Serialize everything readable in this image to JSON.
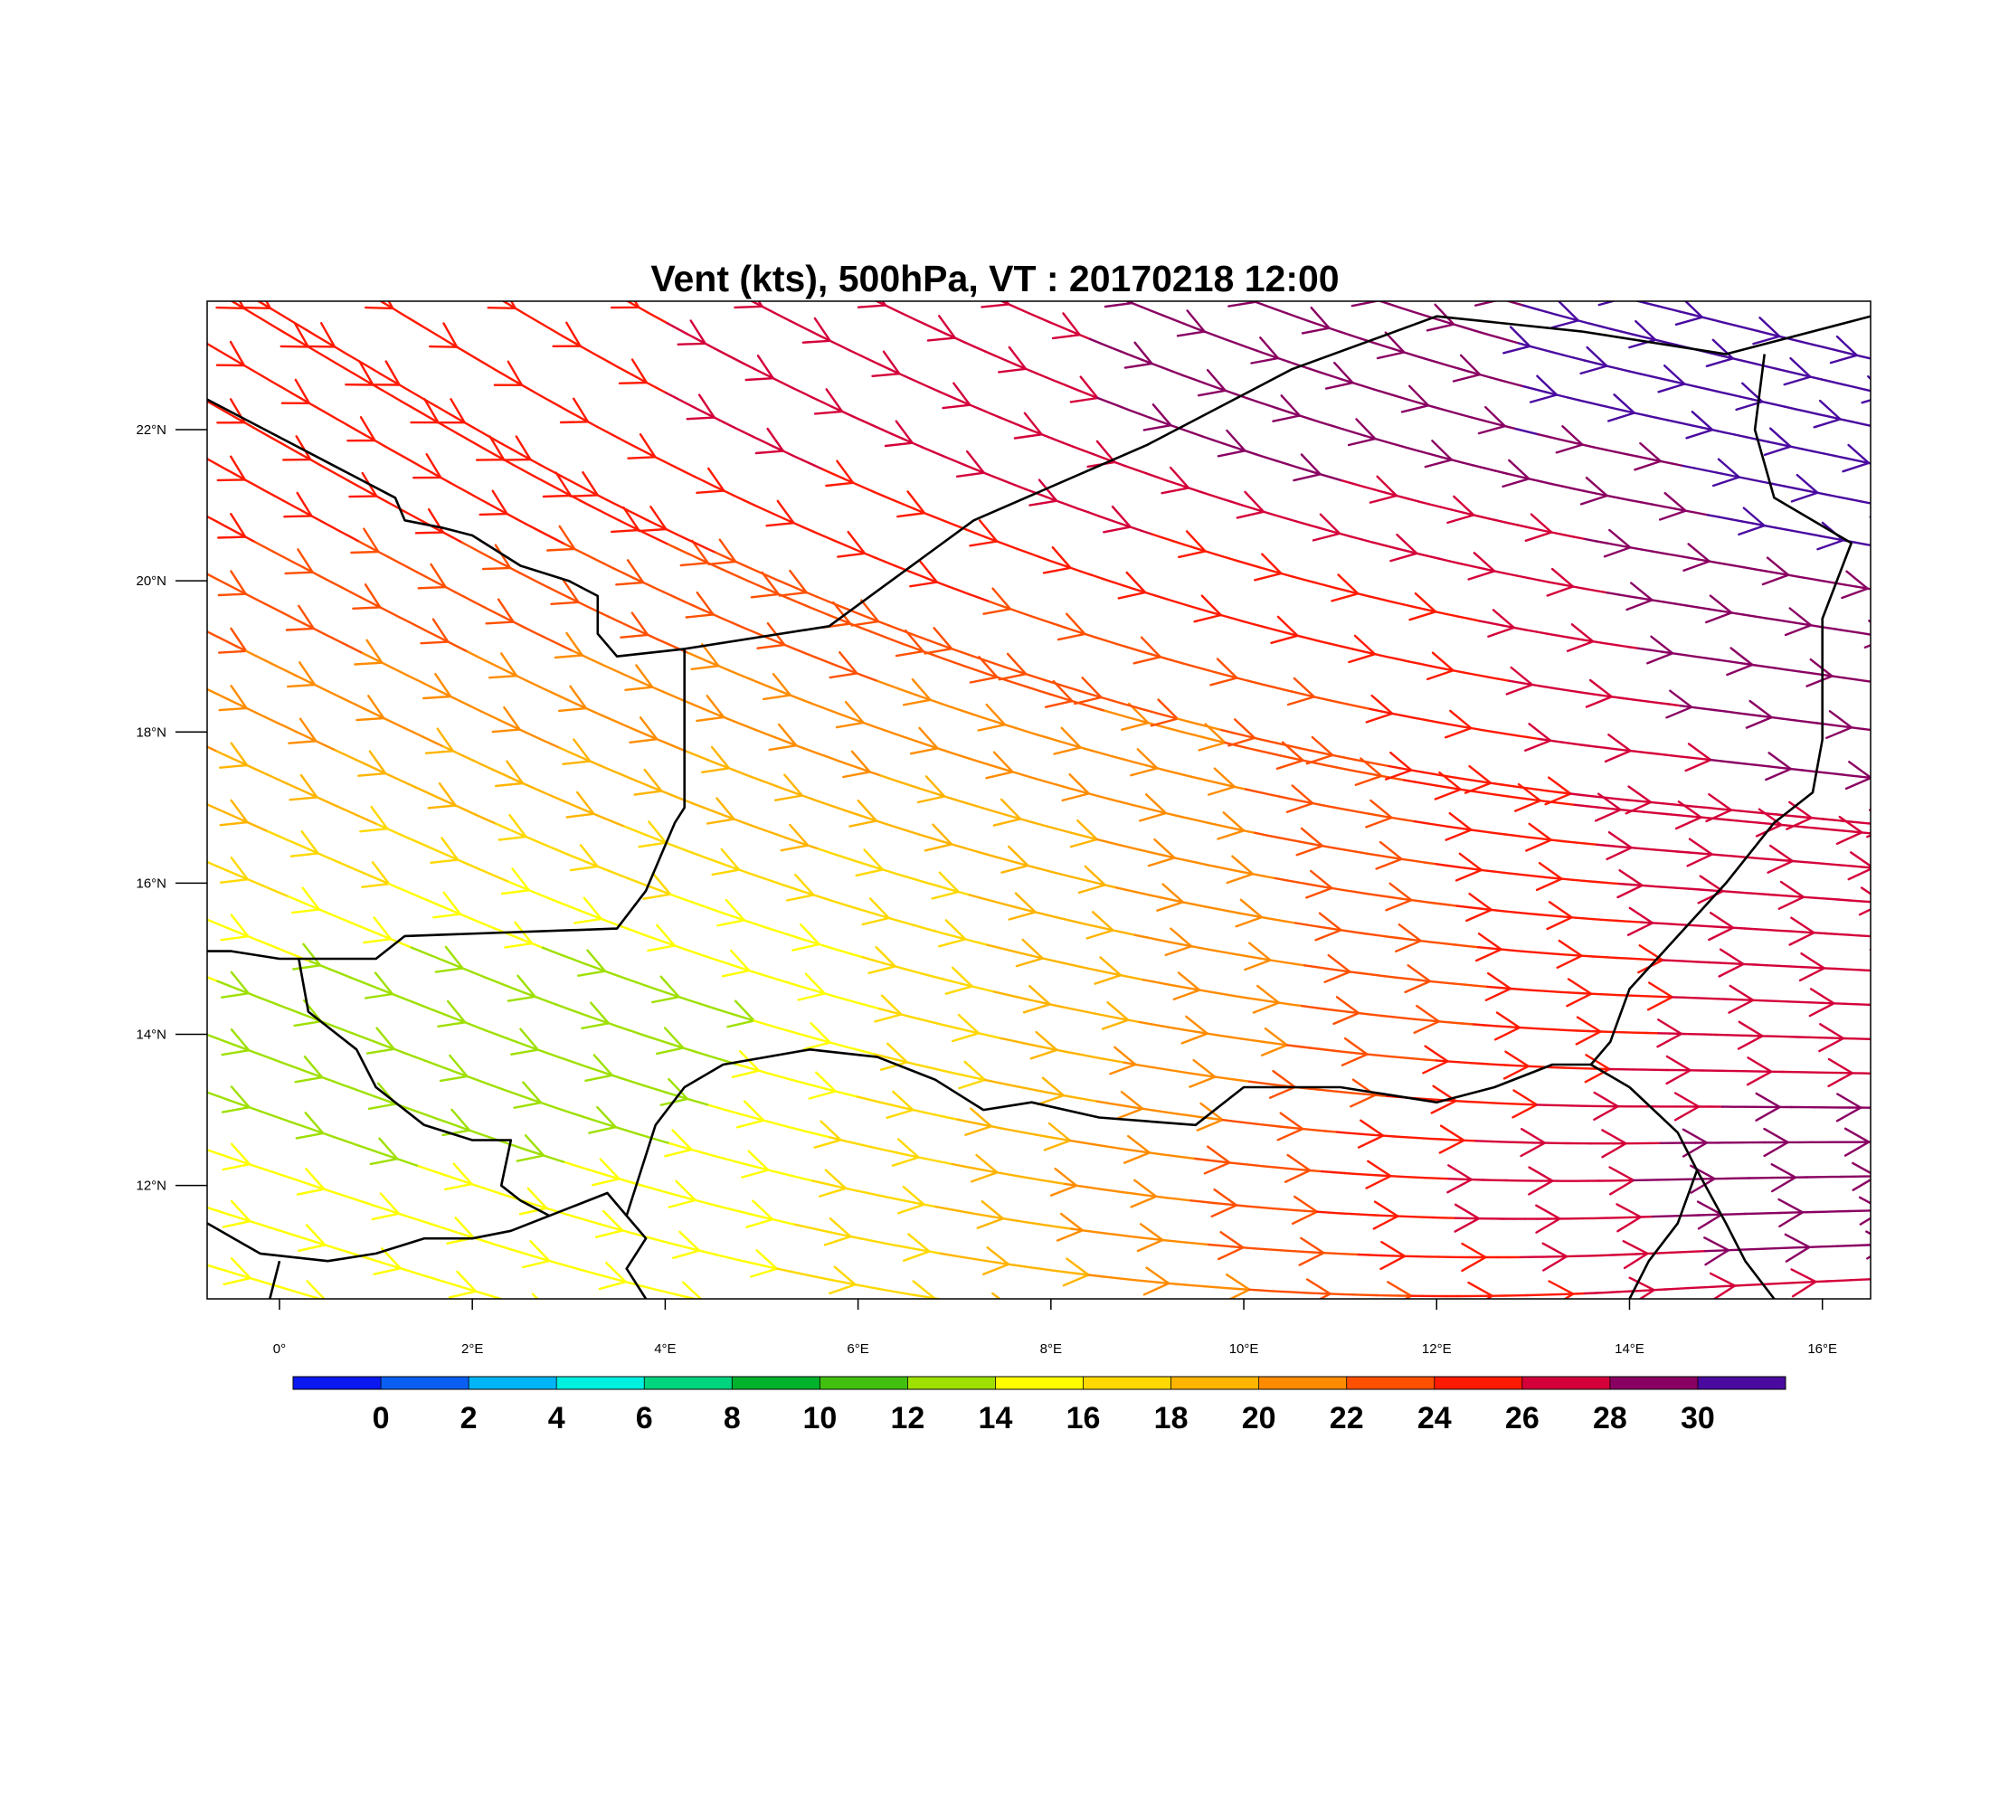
{
  "title": "Vent (kts), 500hPa, VT : 20170218  12:00",
  "axes": {
    "lon_range": [
      -0.75,
      16.5
    ],
    "lat_range": [
      10.5,
      23.7
    ],
    "x_ticks": [
      {
        "value": 0,
        "label": "0°"
      },
      {
        "value": 2,
        "label": "2°E"
      },
      {
        "value": 4,
        "label": "4°E"
      },
      {
        "value": 6,
        "label": "6°E"
      },
      {
        "value": 8,
        "label": "8°E"
      },
      {
        "value": 10,
        "label": "10°E"
      },
      {
        "value": 12,
        "label": "12°E"
      },
      {
        "value": 14,
        "label": "14°E"
      },
      {
        "value": 16,
        "label": "16°E"
      }
    ],
    "y_ticks": [
      {
        "value": 12,
        "label": "12°N"
      },
      {
        "value": 14,
        "label": "14°N"
      },
      {
        "value": 16,
        "label": "16°N"
      },
      {
        "value": 18,
        "label": "18°N"
      },
      {
        "value": 20,
        "label": "20°N"
      },
      {
        "value": 22,
        "label": "22°N"
      }
    ]
  },
  "colorbar": {
    "colors": [
      "#0b18f0",
      "#0a5ff2",
      "#00b4f5",
      "#00f0e0",
      "#00d47e",
      "#00b22c",
      "#41c010",
      "#9ee000",
      "#ffff00",
      "#ffd800",
      "#ffb400",
      "#ff8c00",
      "#ff5000",
      "#ff1a00",
      "#d4003a",
      "#8a0062",
      "#4a0aa0"
    ],
    "labels": [
      "0",
      "2",
      "4",
      "6",
      "8",
      "10",
      "12",
      "14",
      "16",
      "18",
      "20",
      "22",
      "24",
      "26",
      "28",
      "30"
    ]
  },
  "boundaries": [
    [
      [
        -0.75,
        22.4
      ],
      [
        1.2,
        21.1
      ],
      [
        1.3,
        20.8
      ],
      [
        1.7,
        20.7
      ],
      [
        2.0,
        20.6
      ],
      [
        2.5,
        20.2
      ],
      [
        3.0,
        20.0
      ],
      [
        3.3,
        19.8
      ],
      [
        3.3,
        19.3
      ],
      [
        3.5,
        19.0
      ],
      [
        4.2,
        19.1
      ],
      [
        5.7,
        19.4
      ],
      [
        7.2,
        20.8
      ],
      [
        9.0,
        21.8
      ],
      [
        10.5,
        22.8
      ],
      [
        12.0,
        23.5
      ],
      [
        13.5,
        23.3
      ],
      [
        15.0,
        23.0
      ],
      [
        16.5,
        23.5
      ]
    ],
    [
      [
        4.2,
        19.1
      ],
      [
        4.2,
        17.0
      ],
      [
        4.1,
        16.8
      ],
      [
        4.0,
        16.5
      ],
      [
        3.8,
        15.9
      ],
      [
        3.5,
        15.4
      ],
      [
        1.3,
        15.3
      ],
      [
        1.0,
        15.0
      ],
      [
        0.0,
        15.0
      ],
      [
        -0.5,
        15.1
      ],
      [
        -0.75,
        15.1
      ]
    ],
    [
      [
        0.2,
        15.0
      ],
      [
        0.3,
        14.3
      ],
      [
        0.8,
        13.8
      ],
      [
        1.0,
        13.3
      ],
      [
        1.5,
        12.8
      ],
      [
        2.0,
        12.6
      ],
      [
        2.4,
        12.6
      ],
      [
        2.3,
        12.0
      ],
      [
        2.5,
        11.8
      ],
      [
        2.8,
        11.6
      ],
      [
        3.4,
        11.9
      ],
      [
        3.6,
        11.6
      ],
      [
        3.8,
        11.3
      ],
      [
        3.6,
        10.9
      ],
      [
        3.8,
        10.5
      ]
    ],
    [
      [
        3.6,
        11.6
      ],
      [
        3.9,
        12.8
      ],
      [
        4.2,
        13.3
      ],
      [
        4.6,
        13.6
      ],
      [
        5.5,
        13.8
      ],
      [
        6.2,
        13.7
      ],
      [
        6.8,
        13.4
      ],
      [
        7.3,
        13.0
      ],
      [
        7.8,
        13.1
      ],
      [
        8.5,
        12.9
      ],
      [
        9.5,
        12.8
      ],
      [
        10.0,
        13.3
      ],
      [
        11.0,
        13.3
      ],
      [
        12.0,
        13.1
      ],
      [
        12.6,
        13.3
      ],
      [
        13.2,
        13.6
      ],
      [
        13.6,
        13.6
      ],
      [
        14.0,
        13.3
      ]
    ],
    [
      [
        13.6,
        13.6
      ],
      [
        13.8,
        13.9
      ],
      [
        14.0,
        14.6
      ],
      [
        14.5,
        15.3
      ],
      [
        15.0,
        16.0
      ],
      [
        15.5,
        16.8
      ],
      [
        15.9,
        17.2
      ],
      [
        16.0,
        17.9
      ],
      [
        16.0,
        19.5
      ],
      [
        16.3,
        20.5
      ],
      [
        15.5,
        21.1
      ],
      [
        15.3,
        22.0
      ],
      [
        15.4,
        23.0
      ]
    ],
    [
      [
        -0.75,
        11.5
      ],
      [
        -0.2,
        11.1
      ],
      [
        0.5,
        11.0
      ],
      [
        1.0,
        11.1
      ],
      [
        1.5,
        11.3
      ],
      [
        2.0,
        11.3
      ],
      [
        2.4,
        11.4
      ],
      [
        2.8,
        11.6
      ]
    ],
    [
      [
        0.0,
        11.0
      ],
      [
        -0.1,
        10.5
      ]
    ],
    [
      [
        14.0,
        13.3
      ],
      [
        14.5,
        12.7
      ],
      [
        14.7,
        12.2
      ],
      [
        14.5,
        11.5
      ],
      [
        14.2,
        11.0
      ],
      [
        14.0,
        10.5
      ]
    ],
    [
      [
        14.7,
        12.2
      ],
      [
        15.0,
        11.5
      ],
      [
        15.2,
        11.0
      ],
      [
        15.5,
        10.5
      ]
    ]
  ]
}
